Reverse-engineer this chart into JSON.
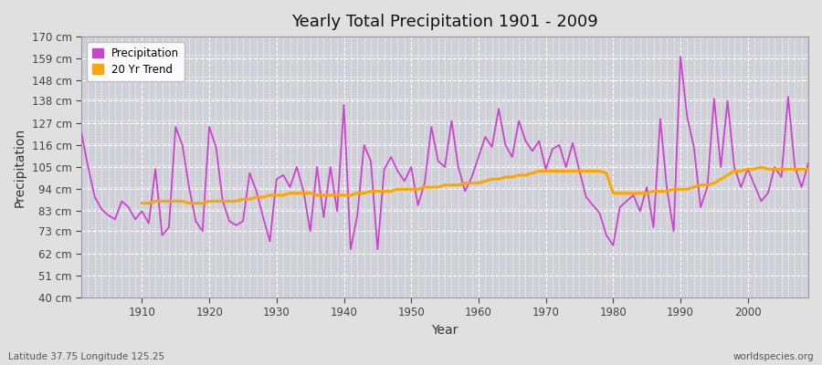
{
  "title": "Yearly Total Precipitation 1901 - 2009",
  "xlabel": "Year",
  "ylabel": "Precipitation",
  "subtitle_left": "Latitude 37.75 Longitude 125.25",
  "subtitle_right": "worldspecies.org",
  "legend_entries": [
    "Precipitation",
    "20 Yr Trend"
  ],
  "precip_color": "#CC44CC",
  "trend_color": "#FFA500",
  "bg_color": "#E0E0E0",
  "plot_bg_color": "#D0D0D8",
  "grid_color": "#FFFFFF",
  "ylim": [
    40,
    170
  ],
  "yticks": [
    40,
    51,
    62,
    73,
    83,
    94,
    105,
    116,
    127,
    138,
    148,
    159,
    170
  ],
  "xlim": [
    1901,
    2009
  ],
  "years": [
    1901,
    1902,
    1903,
    1904,
    1905,
    1906,
    1907,
    1908,
    1909,
    1910,
    1911,
    1912,
    1913,
    1914,
    1915,
    1916,
    1917,
    1918,
    1919,
    1920,
    1921,
    1922,
    1923,
    1924,
    1925,
    1926,
    1927,
    1928,
    1929,
    1930,
    1931,
    1932,
    1933,
    1934,
    1935,
    1936,
    1937,
    1938,
    1939,
    1940,
    1941,
    1942,
    1943,
    1944,
    1945,
    1946,
    1947,
    1948,
    1949,
    1950,
    1951,
    1952,
    1953,
    1954,
    1955,
    1956,
    1957,
    1958,
    1959,
    1960,
    1961,
    1962,
    1963,
    1964,
    1965,
    1966,
    1967,
    1968,
    1969,
    1970,
    1971,
    1972,
    1973,
    1974,
    1975,
    1976,
    1977,
    1978,
    1979,
    1980,
    1981,
    1982,
    1983,
    1984,
    1985,
    1986,
    1987,
    1988,
    1989,
    1990,
    1991,
    1992,
    1993,
    1994,
    1995,
    1996,
    1997,
    1998,
    1999,
    2000,
    2001,
    2002,
    2003,
    2004,
    2005,
    2006,
    2007,
    2008,
    2009
  ],
  "precip": [
    122,
    105,
    90,
    84,
    81,
    79,
    88,
    85,
    79,
    83,
    77,
    104,
    71,
    75,
    125,
    116,
    95,
    78,
    73,
    125,
    115,
    88,
    78,
    76,
    78,
    102,
    93,
    80,
    68,
    99,
    101,
    95,
    105,
    93,
    73,
    105,
    80,
    105,
    83,
    136,
    64,
    81,
    116,
    108,
    64,
    104,
    110,
    103,
    98,
    105,
    86,
    97,
    125,
    108,
    105,
    128,
    105,
    93,
    100,
    110,
    120,
    115,
    134,
    116,
    110,
    128,
    118,
    113,
    118,
    104,
    114,
    116,
    105,
    117,
    103,
    90,
    86,
    82,
    71,
    66,
    85,
    88,
    91,
    83,
    95,
    75,
    129,
    94,
    73,
    160,
    130,
    115,
    85,
    95,
    139,
    105,
    138,
    105,
    95,
    104,
    96,
    88,
    92,
    105,
    100,
    140,
    105,
    95,
    107
  ],
  "trend": [
    null,
    null,
    null,
    null,
    null,
    null,
    null,
    null,
    null,
    87,
    87,
    88,
    88,
    88,
    88,
    88,
    87,
    87,
    87,
    88,
    88,
    88,
    88,
    88,
    89,
    89,
    90,
    90,
    91,
    91,
    91,
    92,
    92,
    92,
    92,
    91,
    91,
    91,
    91,
    91,
    91,
    92,
    92,
    93,
    93,
    93,
    93,
    94,
    94,
    94,
    94,
    95,
    95,
    95,
    96,
    96,
    96,
    97,
    97,
    97,
    98,
    99,
    99,
    100,
    100,
    101,
    101,
    102,
    103,
    103,
    103,
    103,
    103,
    103,
    103,
    103,
    103,
    103,
    102,
    92,
    92,
    92,
    92,
    92,
    92,
    93,
    93,
    93,
    94,
    94,
    94,
    95,
    96,
    96,
    97,
    99,
    101,
    103,
    103,
    104,
    104,
    105,
    104,
    104,
    104,
    104,
    104,
    104,
    104,
    104
  ],
  "figsize": [
    9.0,
    4.0
  ],
  "dpi": 100
}
